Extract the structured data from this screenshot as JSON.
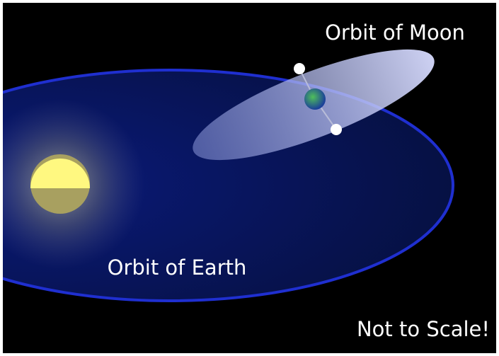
{
  "labels": {
    "moon_orbit": "Orbit of Moon",
    "earth_orbit": "Orbit of Earth",
    "note": "Not to Scale!"
  }
}
